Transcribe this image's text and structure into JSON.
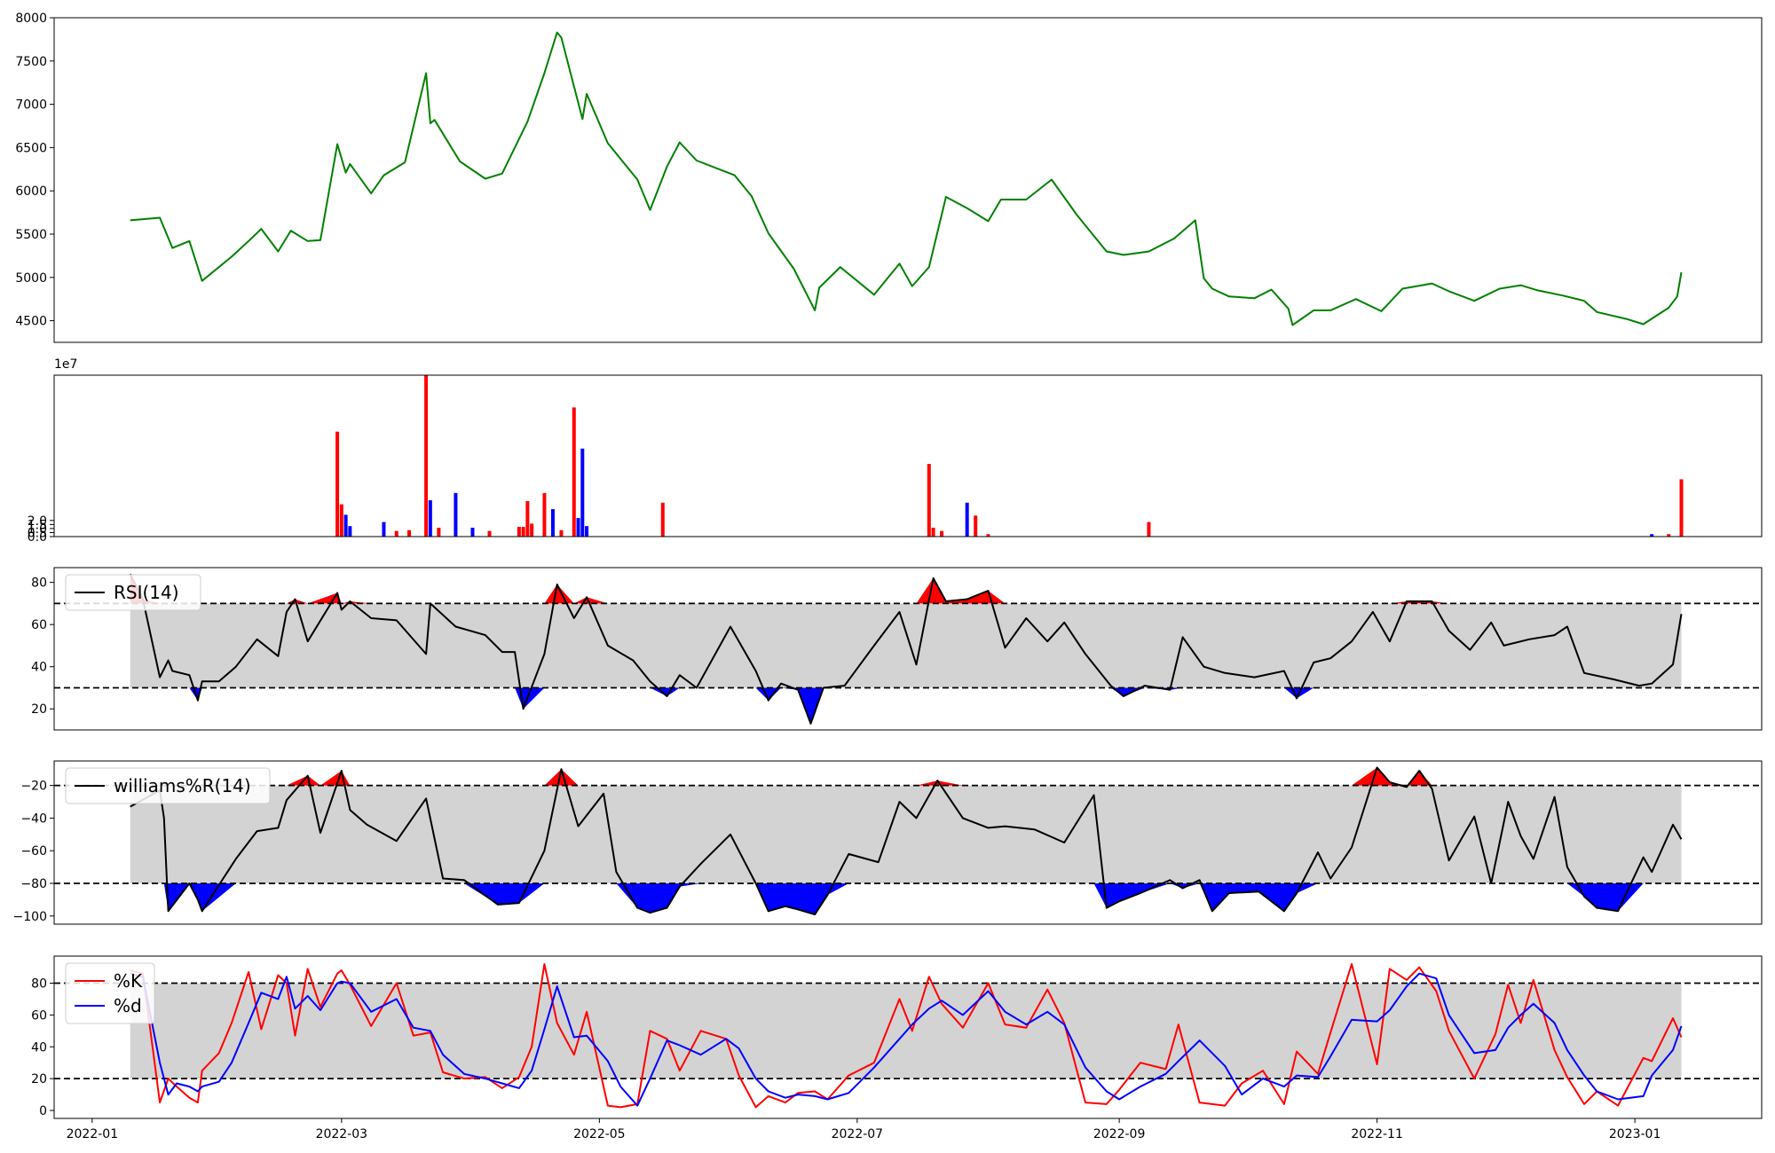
{
  "chart_data": [
    {
      "type": "line",
      "title": "",
      "xlabel": "",
      "ylabel": "",
      "ylim": [
        4250,
        8000
      ],
      "yticks": [
        "4500",
        "5000",
        "5500",
        "6000",
        "6500",
        "7000",
        "7500",
        "8000"
      ],
      "color": "#008000",
      "x": [
        "2022-01-10",
        "2022-01-17",
        "2022-01-20",
        "2022-01-24",
        "2022-01-27",
        "2022-02-03",
        "2022-02-07",
        "2022-02-10",
        "2022-02-14",
        "2022-02-17",
        "2022-02-21",
        "2022-02-24",
        "2022-02-28",
        "2022-03-02",
        "2022-03-03",
        "2022-03-08",
        "2022-03-11",
        "2022-03-16",
        "2022-03-21",
        "2022-03-22",
        "2022-03-23",
        "2022-03-29",
        "2022-04-04",
        "2022-04-08",
        "2022-04-12",
        "2022-04-14",
        "2022-04-18",
        "2022-04-21",
        "2022-04-22",
        "2022-04-27",
        "2022-04-28",
        "2022-05-03",
        "2022-05-10",
        "2022-05-13",
        "2022-05-17",
        "2022-05-20",
        "2022-05-24",
        "2022-06-02",
        "2022-06-06",
        "2022-06-10",
        "2022-06-16",
        "2022-06-21",
        "2022-06-22",
        "2022-06-27",
        "2022-07-05",
        "2022-07-11",
        "2022-07-14",
        "2022-07-18",
        "2022-07-22",
        "2022-07-27",
        "2022-08-01",
        "2022-08-04",
        "2022-08-10",
        "2022-08-16",
        "2022-08-22",
        "2022-08-29",
        "2022-09-02",
        "2022-09-08",
        "2022-09-14",
        "2022-09-19",
        "2022-09-21",
        "2022-09-23",
        "2022-09-27",
        "2022-10-03",
        "2022-10-07",
        "2022-10-11",
        "2022-10-12",
        "2022-10-17",
        "2022-10-21",
        "2022-10-27",
        "2022-11-02",
        "2022-11-07",
        "2022-11-14",
        "2022-11-18",
        "2022-11-24",
        "2022-11-30",
        "2022-12-05",
        "2022-12-09",
        "2022-12-15",
        "2022-12-20",
        "2022-12-23",
        "2022-12-30",
        "2023-01-03",
        "2023-01-09",
        "2023-01-11",
        "2023-01-12"
      ],
      "values": [
        5660,
        5690,
        5340,
        5420,
        4960,
        5240,
        5420,
        5560,
        5300,
        5540,
        5420,
        5430,
        6540,
        6210,
        6310,
        5970,
        6180,
        6330,
        7360,
        6780,
        6820,
        6340,
        6140,
        6200,
        6600,
        6800,
        7360,
        7830,
        7770,
        6830,
        7120,
        6550,
        6130,
        5780,
        6280,
        6560,
        6350,
        6180,
        5940,
        5510,
        5100,
        4620,
        4880,
        5120,
        4800,
        5160,
        4900,
        5120,
        5930,
        5800,
        5650,
        5900,
        5900,
        6130,
        5720,
        5300,
        5260,
        5300,
        5450,
        5660,
        4990,
        4870,
        4780,
        4760,
        4860,
        4640,
        4450,
        4620,
        4620,
        4750,
        4610,
        4870,
        4930,
        4840,
        4730,
        4870,
        4910,
        4850,
        4790,
        4730,
        4600,
        4520,
        4460,
        4650,
        4780,
        5060
      ]
    },
    {
      "type": "bar",
      "title": "",
      "xlabel": "",
      "ylabel": "",
      "scale_label": "1e7",
      "ylim": [
        0,
        20
      ],
      "yticks": [
        "0.0",
        "0.5",
        "1.0",
        "1.5",
        "2.0"
      ],
      "colors": {
        "up": "#ff0000",
        "down": "#0000ff"
      },
      "x": [
        "2022-02-28",
        "2022-03-01",
        "2022-03-02",
        "2022-03-03",
        "2022-03-11",
        "2022-03-14",
        "2022-03-17",
        "2022-03-21",
        "2022-03-22",
        "2022-03-24",
        "2022-03-28",
        "2022-04-01",
        "2022-04-05",
        "2022-04-12",
        "2022-04-13",
        "2022-04-14",
        "2022-04-15",
        "2022-04-18",
        "2022-04-20",
        "2022-04-22",
        "2022-04-25",
        "2022-04-26",
        "2022-04-27",
        "2022-04-28",
        "2022-05-16",
        "2022-07-18",
        "2022-07-19",
        "2022-07-21",
        "2022-07-27",
        "2022-07-29",
        "2022-08-01",
        "2022-09-08",
        "2023-01-05",
        "2023-01-09",
        "2023-01-12"
      ],
      "values": [
        13,
        4,
        2.7,
        1.3,
        1.8,
        0.7,
        0.8,
        20,
        4.5,
        1.1,
        5.4,
        1.1,
        0.7,
        1.2,
        1.2,
        4.4,
        1.6,
        5.4,
        3.4,
        0.8,
        16,
        2.3,
        10.9,
        1.3,
        4.2,
        9,
        1.1,
        0.7,
        4.2,
        2.6,
        0.3,
        1.8,
        0.3,
        0.3,
        7.1
      ],
      "directions": [
        "up",
        "up",
        "down",
        "down",
        "down",
        "up",
        "up",
        "up",
        "down",
        "up",
        "down",
        "down",
        "up",
        "up",
        "up",
        "up",
        "up",
        "up",
        "down",
        "up",
        "up",
        "down",
        "down",
        "down",
        "up",
        "up",
        "up",
        "up",
        "down",
        "up",
        "up",
        "up",
        "down",
        "up",
        "up"
      ]
    },
    {
      "type": "line",
      "title": "",
      "xlabel": "",
      "ylabel": "",
      "ylim": [
        10,
        87
      ],
      "yticks": [
        "20",
        "40",
        "60",
        "80"
      ],
      "thresholds": [
        30,
        70
      ],
      "legend": {
        "label": "RSI(14)",
        "placement": "upper-left",
        "color": "#000000"
      },
      "fill_colors": {
        "overbought": "#ff0000",
        "oversold": "#0000ff",
        "band": "#d3d3d3"
      },
      "x": [
        "2022-01-10",
        "2022-01-13",
        "2022-01-17",
        "2022-01-19",
        "2022-01-20",
        "2022-01-24",
        "2022-01-26",
        "2022-01-27",
        "2022-01-31",
        "2022-02-04",
        "2022-02-09",
        "2022-02-14",
        "2022-02-16",
        "2022-02-18",
        "2022-02-21",
        "2022-02-28",
        "2022-03-01",
        "2022-03-03",
        "2022-03-08",
        "2022-03-14",
        "2022-03-21",
        "2022-03-22",
        "2022-03-28",
        "2022-04-04",
        "2022-04-08",
        "2022-04-11",
        "2022-04-13",
        "2022-04-18",
        "2022-04-21",
        "2022-04-25",
        "2022-04-28",
        "2022-05-03",
        "2022-05-09",
        "2022-05-13",
        "2022-05-17",
        "2022-05-20",
        "2022-05-24",
        "2022-06-01",
        "2022-06-07",
        "2022-06-10",
        "2022-06-13",
        "2022-06-17",
        "2022-06-20",
        "2022-06-23",
        "2022-06-28",
        "2022-07-05",
        "2022-07-11",
        "2022-07-15",
        "2022-07-19",
        "2022-07-22",
        "2022-07-27",
        "2022-08-01",
        "2022-08-05",
        "2022-08-10",
        "2022-08-15",
        "2022-08-19",
        "2022-08-24",
        "2022-08-30",
        "2022-09-02",
        "2022-09-07",
        "2022-09-13",
        "2022-09-16",
        "2022-09-21",
        "2022-09-26",
        "2022-10-03",
        "2022-10-10",
        "2022-10-13",
        "2022-10-17",
        "2022-10-21",
        "2022-10-26",
        "2022-10-31",
        "2022-11-04",
        "2022-11-08",
        "2022-11-14",
        "2022-11-18",
        "2022-11-23",
        "2022-11-28",
        "2022-12-01",
        "2022-12-07",
        "2022-12-13",
        "2022-12-16",
        "2022-12-20",
        "2022-12-27",
        "2023-01-02",
        "2023-01-05",
        "2023-01-10",
        "2023-01-12"
      ],
      "values": [
        84,
        72,
        35,
        43,
        38,
        36,
        24,
        33,
        33,
        40,
        53,
        45,
        66,
        72,
        52,
        75,
        67,
        71,
        63,
        62,
        46,
        70,
        59,
        55,
        47,
        47,
        20,
        46,
        79,
        63,
        73,
        50,
        43,
        33,
        26,
        36,
        30,
        59,
        38,
        24,
        32,
        29,
        13,
        30,
        31,
        50,
        66,
        41,
        82,
        71,
        72,
        76,
        49,
        63,
        52,
        61,
        46,
        31,
        26,
        31,
        29,
        54,
        40,
        37,
        35,
        38,
        25,
        42,
        44,
        52,
        66,
        52,
        71,
        71,
        57,
        48,
        61,
        50,
        53,
        55,
        59,
        37,
        34,
        31,
        32,
        41,
        65
      ]
    },
    {
      "type": "line",
      "title": "",
      "xlabel": "",
      "ylabel": "",
      "ylim": [
        -105,
        -5
      ],
      "yticks": [
        "−100",
        "−80",
        "−60",
        "−40",
        "−20"
      ],
      "thresholds": [
        -80,
        -20
      ],
      "legend": {
        "label": "williams%R(14)",
        "placement": "upper-left",
        "color": "#000000"
      },
      "fill_colors": {
        "overbought": "#ff0000",
        "oversold": "#0000ff",
        "band": "#d3d3d3"
      },
      "x": [
        "2022-01-10",
        "2022-01-17",
        "2022-01-18",
        "2022-01-19",
        "2022-01-24",
        "2022-01-26",
        "2022-01-27",
        "2022-02-04",
        "2022-02-09",
        "2022-02-14",
        "2022-02-16",
        "2022-02-21",
        "2022-02-24",
        "2022-03-01",
        "2022-03-03",
        "2022-03-07",
        "2022-03-14",
        "2022-03-21",
        "2022-03-25",
        "2022-03-30",
        "2022-04-07",
        "2022-04-12",
        "2022-04-18",
        "2022-04-22",
        "2022-04-26",
        "2022-05-02",
        "2022-05-05",
        "2022-05-10",
        "2022-05-13",
        "2022-05-17",
        "2022-05-20",
        "2022-05-25",
        "2022-06-01",
        "2022-06-07",
        "2022-06-10",
        "2022-06-14",
        "2022-06-17",
        "2022-06-21",
        "2022-06-24",
        "2022-06-29",
        "2022-07-06",
        "2022-07-11",
        "2022-07-15",
        "2022-07-20",
        "2022-07-26",
        "2022-08-01",
        "2022-08-05",
        "2022-08-12",
        "2022-08-19",
        "2022-08-26",
        "2022-08-29",
        "2022-09-01",
        "2022-09-06",
        "2022-09-13",
        "2022-09-16",
        "2022-09-20",
        "2022-09-23",
        "2022-09-27",
        "2022-10-04",
        "2022-10-10",
        "2022-10-13",
        "2022-10-18",
        "2022-10-21",
        "2022-10-26",
        "2022-11-01",
        "2022-11-04",
        "2022-11-08",
        "2022-11-11",
        "2022-11-14",
        "2022-11-18",
        "2022-11-24",
        "2022-11-28",
        "2022-12-02",
        "2022-12-05",
        "2022-12-08",
        "2022-12-13",
        "2022-12-16",
        "2022-12-20",
        "2022-12-23",
        "2022-12-28",
        "2023-01-03",
        "2023-01-05",
        "2023-01-10",
        "2023-01-12"
      ],
      "values": [
        -33,
        -23,
        -40,
        -97,
        -80,
        -90,
        -97,
        -65,
        -48,
        -46,
        -29,
        -14,
        -49,
        -11,
        -35,
        -44,
        -54,
        -28,
        -77,
        -78,
        -93,
        -92,
        -60,
        -10,
        -45,
        -25,
        -73,
        -95,
        -98,
        -95,
        -82,
        -68,
        -50,
        -80,
        -97,
        -94,
        -96,
        -99,
        -87,
        -62,
        -67,
        -30,
        -40,
        -17,
        -40,
        -46,
        -45,
        -47,
        -55,
        -26,
        -95,
        -91,
        -86,
        -78,
        -83,
        -78,
        -97,
        -86,
        -85,
        -97,
        -86,
        -61,
        -77,
        -58,
        -9,
        -18,
        -21,
        -11,
        -22,
        -66,
        -39,
        -80,
        -30,
        -51,
        -65,
        -27,
        -70,
        -88,
        -95,
        -97,
        -64,
        -73,
        -44,
        -53
      ]
    },
    {
      "type": "line",
      "title": "",
      "xlabel": "",
      "ylabel": "",
      "ylim": [
        -5,
        97
      ],
      "yticks": [
        "0",
        "20",
        "40",
        "60",
        "80"
      ],
      "thresholds": [
        20,
        80
      ],
      "legend_placement": "upper-left",
      "fill_colors": {
        "band": "#d3d3d3"
      },
      "x": [
        "2022-01-10",
        "2022-01-13",
        "2022-01-17",
        "2022-01-19",
        "2022-01-21",
        "2022-01-24",
        "2022-01-26",
        "2022-01-27",
        "2022-01-31",
        "2022-02-03",
        "2022-02-07",
        "2022-02-10",
        "2022-02-14",
        "2022-02-16",
        "2022-02-18",
        "2022-02-21",
        "2022-02-24",
        "2022-02-28",
        "2022-03-01",
        "2022-03-03",
        "2022-03-08",
        "2022-03-14",
        "2022-03-18",
        "2022-03-22",
        "2022-03-25",
        "2022-03-30",
        "2022-04-04",
        "2022-04-08",
        "2022-04-12",
        "2022-04-15",
        "2022-04-18",
        "2022-04-21",
        "2022-04-25",
        "2022-04-28",
        "2022-05-03",
        "2022-05-06",
        "2022-05-10",
        "2022-05-13",
        "2022-05-17",
        "2022-05-20",
        "2022-05-25",
        "2022-05-31",
        "2022-06-03",
        "2022-06-07",
        "2022-06-10",
        "2022-06-14",
        "2022-06-17",
        "2022-06-21",
        "2022-06-24",
        "2022-06-29",
        "2022-07-05",
        "2022-07-11",
        "2022-07-14",
        "2022-07-18",
        "2022-07-21",
        "2022-07-26",
        "2022-08-01",
        "2022-08-05",
        "2022-08-10",
        "2022-08-15",
        "2022-08-19",
        "2022-08-24",
        "2022-08-29",
        "2022-09-01",
        "2022-09-06",
        "2022-09-12",
        "2022-09-15",
        "2022-09-20",
        "2022-09-26",
        "2022-09-30",
        "2022-10-05",
        "2022-10-10",
        "2022-10-13",
        "2022-10-18",
        "2022-10-21",
        "2022-10-26",
        "2022-11-01",
        "2022-11-04",
        "2022-11-08",
        "2022-11-11",
        "2022-11-15",
        "2022-11-18",
        "2022-11-24",
        "2022-11-29",
        "2022-12-02",
        "2022-12-05",
        "2022-12-08",
        "2022-12-13",
        "2022-12-16",
        "2022-12-20",
        "2022-12-23",
        "2022-12-28",
        "2023-01-03",
        "2023-01-05",
        "2023-01-10",
        "2023-01-12"
      ],
      "series": [
        {
          "name": "%K",
          "color": "#ff0000",
          "values": [
            88,
            86,
            5,
            20,
            15,
            8,
            5,
            25,
            36,
            55,
            87,
            51,
            85,
            80,
            47,
            89,
            65,
            86,
            88,
            79,
            53,
            80,
            47,
            49,
            24,
            20,
            21,
            14,
            21,
            40,
            92,
            55,
            35,
            62,
            3,
            2,
            4,
            50,
            45,
            25,
            50,
            45,
            22,
            2,
            9,
            5,
            11,
            12,
            7,
            22,
            30,
            70,
            50,
            84,
            67,
            52,
            80,
            54,
            52,
            76,
            55,
            5,
            4,
            13,
            30,
            26,
            54,
            5,
            3,
            17,
            25,
            4,
            37,
            23,
            49,
            92,
            29,
            89,
            82,
            90,
            75,
            50,
            20,
            48,
            79,
            55,
            82,
            38,
            21,
            4,
            12,
            3,
            33,
            31,
            58,
            46
          ]
        },
        {
          "name": "%d",
          "color": "#0000ff",
          "values": [
            86,
            84,
            30,
            10,
            17,
            15,
            12,
            15,
            18,
            30,
            55,
            74,
            70,
            84,
            64,
            72,
            63,
            80,
            81,
            80,
            62,
            70,
            52,
            50,
            35,
            23,
            20,
            17,
            14,
            25,
            51,
            78,
            46,
            47,
            31,
            15,
            3,
            20,
            44,
            41,
            35,
            45,
            39,
            20,
            12,
            8,
            10,
            9,
            7,
            11,
            27,
            45,
            54,
            64,
            69,
            60,
            75,
            62,
            54,
            62,
            54,
            27,
            12,
            7,
            15,
            23,
            31,
            44,
            28,
            10,
            20,
            15,
            22,
            21,
            34,
            57,
            56,
            63,
            78,
            86,
            83,
            60,
            36,
            38,
            52,
            60,
            67,
            55,
            38,
            22,
            12,
            7,
            9,
            22,
            38,
            53
          ]
        }
      ]
    }
  ],
  "x_axis": {
    "tick_labels": [
      "2022-01",
      "2022-03",
      "2022-05",
      "2022-07",
      "2022-09",
      "2022-11",
      "2023-01"
    ],
    "tick_dates": [
      "2022-01-01",
      "2022-03-01",
      "2022-05-01",
      "2022-07-01",
      "2022-09-01",
      "2022-11-01",
      "2023-01-01"
    ],
    "range": [
      "2021-12-23",
      "2023-01-31"
    ]
  }
}
